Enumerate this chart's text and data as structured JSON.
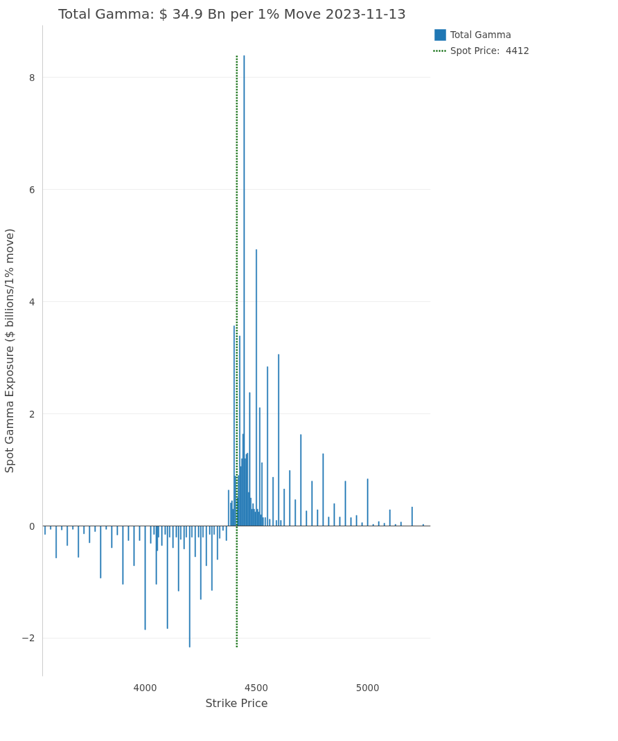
{
  "chart_data": {
    "type": "bar",
    "title": "Total Gamma: $ 34.9  Bn per 1% Move  2023-11-13",
    "xlabel": "Strike Price",
    "ylabel": "Spot Gamma Exposure ($ billions/1% move)",
    "xlim": [
      3539,
      5283
    ],
    "xticks": [
      4000,
      4500,
      5000
    ],
    "ylim": [
      -2.68,
      8.93
    ],
    "yticks": [
      -2,
      0,
      2,
      4,
      6,
      8
    ],
    "grid": "y",
    "legend": "top right",
    "series": [
      {
        "name": "Total Gamma",
        "color": "#1f77b4",
        "x": [
          3550,
          3575,
          3600,
          3625,
          3650,
          3675,
          3700,
          3725,
          3750,
          3775,
          3800,
          3825,
          3850,
          3875,
          3900,
          3925,
          3950,
          3975,
          4000,
          4025,
          4040,
          4050,
          4055,
          4060,
          4075,
          4090,
          4100,
          4110,
          4125,
          4140,
          4150,
          4160,
          4175,
          4185,
          4200,
          4210,
          4225,
          4240,
          4250,
          4260,
          4275,
          4290,
          4300,
          4310,
          4325,
          4335,
          4350,
          4365,
          4375,
          4385,
          4390,
          4395,
          4400,
          4405,
          4415,
          4420,
          4425,
          4430,
          4435,
          4440,
          4445,
          4450,
          4455,
          4460,
          4465,
          4470,
          4475,
          4480,
          4485,
          4490,
          4495,
          4500,
          4505,
          4510,
          4515,
          4520,
          4525,
          4530,
          4540,
          4550,
          4560,
          4575,
          4590,
          4600,
          4610,
          4625,
          4650,
          4675,
          4700,
          4725,
          4750,
          4775,
          4800,
          4825,
          4850,
          4875,
          4900,
          4925,
          4950,
          4975,
          5000,
          5025,
          5050,
          5075,
          5100,
          5125,
          5150,
          5200,
          5250
        ],
        "values": [
          -0.15,
          -0.06,
          -0.57,
          -0.07,
          -0.35,
          -0.06,
          -0.56,
          -0.14,
          -0.3,
          -0.1,
          -0.93,
          -0.06,
          -0.39,
          -0.16,
          -1.04,
          -0.26,
          -0.71,
          -0.26,
          -1.85,
          -0.31,
          -0.15,
          -1.04,
          -0.44,
          -0.2,
          -0.35,
          -0.15,
          -1.83,
          -0.2,
          -0.39,
          -0.2,
          -1.16,
          -0.24,
          -0.41,
          -0.2,
          -2.16,
          -0.2,
          -0.55,
          -0.2,
          -1.31,
          -0.2,
          -0.71,
          -0.15,
          -1.15,
          -0.15,
          -0.6,
          -0.22,
          -0.08,
          -0.26,
          0.64,
          0.41,
          0.45,
          0.3,
          3.57,
          0.89,
          0.5,
          0.9,
          3.39,
          1.06,
          1.2,
          1.64,
          8.39,
          1.2,
          1.28,
          1.3,
          0.6,
          2.38,
          0.5,
          0.3,
          0.4,
          0.3,
          0.25,
          4.93,
          0.3,
          0.25,
          2.11,
          0.2,
          1.13,
          0.15,
          0.15,
          2.84,
          0.12,
          0.87,
          0.1,
          3.06,
          0.1,
          0.66,
          0.99,
          0.47,
          1.63,
          0.27,
          0.8,
          0.29,
          1.29,
          0.16,
          0.4,
          0.16,
          0.8,
          0.15,
          0.19,
          0.06,
          0.84,
          0.03,
          0.08,
          0.05,
          0.29,
          0.03,
          0.07,
          0.34,
          0.03
        ]
      },
      {
        "name": "Spot Price:  4412",
        "type": "line",
        "color": "#006400",
        "line_style": "dotted",
        "x": [
          4412,
          4412
        ],
        "values": [
          -2.16,
          8.4
        ]
      }
    ]
  }
}
